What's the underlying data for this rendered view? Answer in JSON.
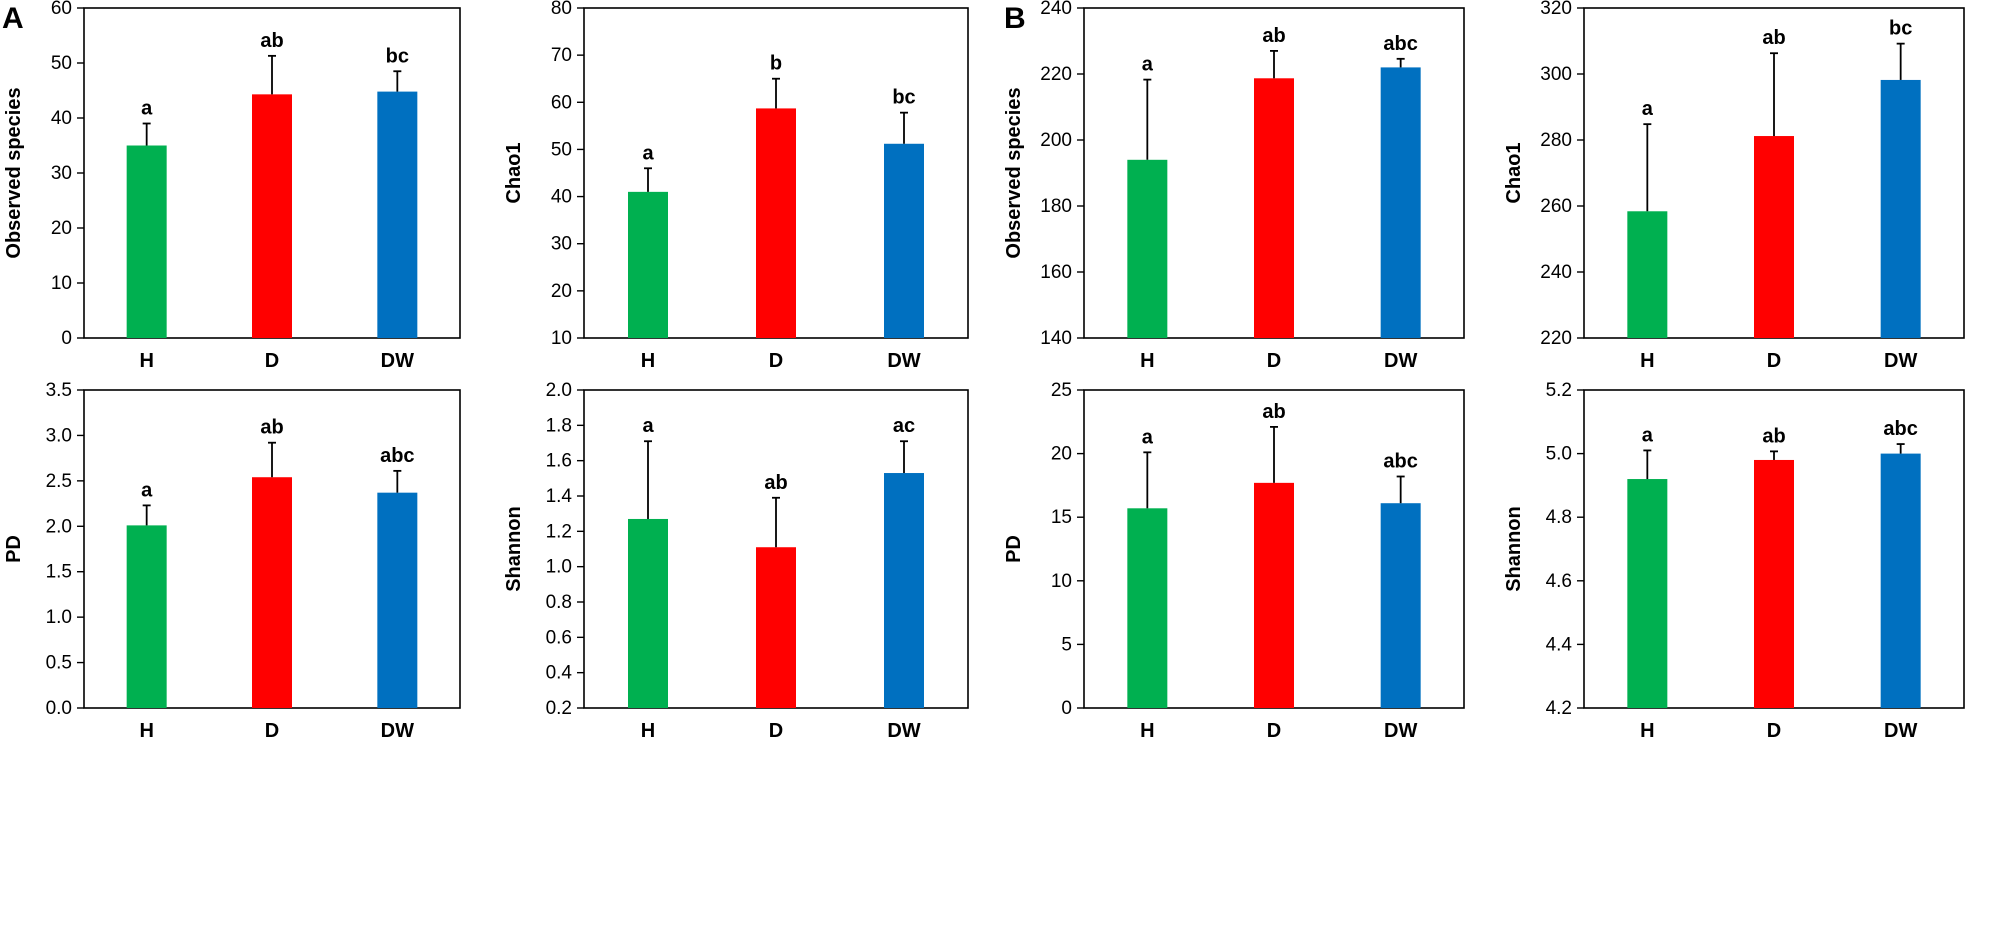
{
  "panel_labels": [
    "A",
    "B"
  ],
  "colors": {
    "H": "#00b050",
    "D": "#ff0000",
    "DW": "#0070c0"
  },
  "chart_data": [
    {
      "type": "bar",
      "panel": "A",
      "title": "",
      "xlabel": "",
      "ylabel": "Observed species",
      "categories": [
        "H",
        "D",
        "DW"
      ],
      "values": [
        35.0,
        44.3,
        44.8
      ],
      "errors": [
        4.0,
        7.0,
        3.7
      ],
      "significance": [
        "a",
        "ab",
        "bc"
      ],
      "ylim": [
        0,
        60
      ],
      "yticks": [
        0,
        10,
        20,
        30,
        40,
        50,
        60
      ],
      "tick_decimals": 0
    },
    {
      "type": "bar",
      "panel": "A",
      "title": "",
      "xlabel": "",
      "ylabel": "Chao1",
      "categories": [
        "H",
        "D",
        "DW"
      ],
      "values": [
        41.0,
        58.7,
        51.2
      ],
      "errors": [
        5.0,
        6.3,
        6.6
      ],
      "significance": [
        "a",
        "b",
        "bc"
      ],
      "ylim": [
        10,
        80
      ],
      "yticks": [
        10,
        20,
        30,
        40,
        50,
        60,
        70,
        80
      ],
      "tick_decimals": 0
    },
    {
      "type": "bar",
      "panel": "B",
      "title": "",
      "xlabel": "",
      "ylabel": "Observed species",
      "categories": [
        "H",
        "D",
        "DW"
      ],
      "values": [
        194.0,
        218.7,
        222.0
      ],
      "errors": [
        24.3,
        8.3,
        2.6
      ],
      "significance": [
        "a",
        "ab",
        "abc"
      ],
      "ylim": [
        140,
        240
      ],
      "yticks": [
        140,
        160,
        180,
        200,
        220,
        240
      ],
      "tick_decimals": 0
    },
    {
      "type": "bar",
      "panel": "B",
      "title": "",
      "xlabel": "",
      "ylabel": "Chao1",
      "categories": [
        "H",
        "D",
        "DW"
      ],
      "values": [
        258.4,
        281.2,
        298.2
      ],
      "errors": [
        26.4,
        25.1,
        11.0
      ],
      "significance": [
        "a",
        "ab",
        "bc"
      ],
      "ylim": [
        220,
        320
      ],
      "yticks": [
        220,
        240,
        260,
        280,
        300,
        320
      ],
      "tick_decimals": 0
    },
    {
      "type": "bar",
      "panel": "A",
      "title": "",
      "xlabel": "",
      "ylabel": "PD",
      "categories": [
        "H",
        "D",
        "DW"
      ],
      "values": [
        2.01,
        2.54,
        2.37
      ],
      "errors": [
        0.22,
        0.38,
        0.24
      ],
      "significance": [
        "a",
        "ab",
        "abc"
      ],
      "ylim": [
        0,
        3.5
      ],
      "yticks": [
        0,
        0.5,
        1.0,
        1.5,
        2.0,
        2.5,
        3.0,
        3.5
      ],
      "tick_decimals": 1
    },
    {
      "type": "bar",
      "panel": "A",
      "title": "",
      "xlabel": "",
      "ylabel": "Shannon",
      "categories": [
        "H",
        "D",
        "DW"
      ],
      "values": [
        1.27,
        1.11,
        1.53
      ],
      "errors": [
        0.44,
        0.28,
        0.18
      ],
      "significance": [
        "a",
        "ab",
        "ac"
      ],
      "ylim": [
        0.2,
        2.0
      ],
      "yticks": [
        0.2,
        0.4,
        0.6,
        0.8,
        1.0,
        1.2,
        1.4,
        1.6,
        1.8,
        2.0
      ],
      "tick_decimals": 1
    },
    {
      "type": "bar",
      "panel": "B",
      "title": "",
      "xlabel": "",
      "ylabel": "PD",
      "categories": [
        "H",
        "D",
        "DW"
      ],
      "values": [
        15.7,
        17.7,
        16.1
      ],
      "errors": [
        4.4,
        4.4,
        2.1
      ],
      "significance": [
        "a",
        "ab",
        "abc"
      ],
      "ylim": [
        0,
        25
      ],
      "yticks": [
        0,
        5,
        10,
        15,
        20,
        25
      ],
      "tick_decimals": 0
    },
    {
      "type": "bar",
      "panel": "B",
      "title": "",
      "xlabel": "",
      "ylabel": "Shannon",
      "categories": [
        "H",
        "D",
        "DW"
      ],
      "values": [
        4.92,
        4.98,
        5.0
      ],
      "errors": [
        0.09,
        0.027,
        0.03
      ],
      "significance": [
        "a",
        "ab",
        "abc"
      ],
      "ylim": [
        4.2,
        5.2
      ],
      "yticks": [
        4.2,
        4.4,
        4.6,
        4.8,
        5.0,
        5.2
      ],
      "tick_decimals": 1
    }
  ]
}
